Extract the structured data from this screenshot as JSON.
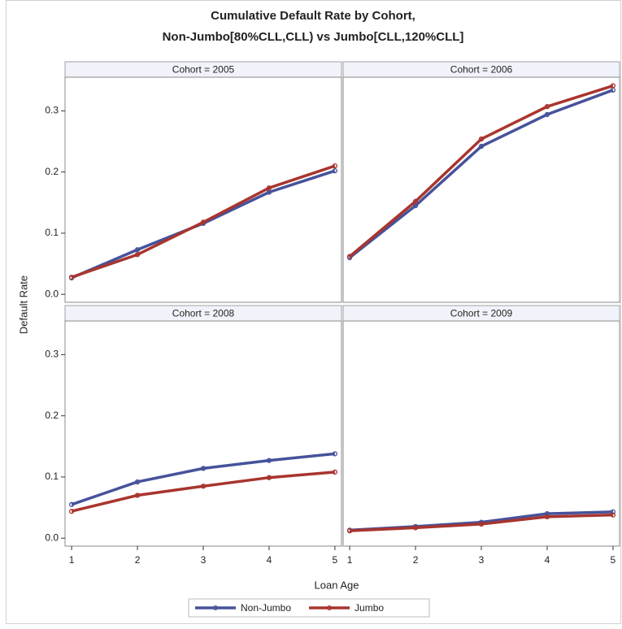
{
  "chart_data": {
    "type": "line",
    "title": "Cumulative Default Rate by Cohort,",
    "subtitle": "Non-Jumbo[80%CLL,CLL) vs Jumbo[CLL,120%CLL]",
    "xlabel": "Loan Age",
    "ylabel": "Default Rate",
    "x": [
      1,
      2,
      3,
      4,
      5
    ],
    "xlim": [
      0.9,
      5.1
    ],
    "xticks": [
      1,
      2,
      3,
      4,
      5
    ],
    "ylim": [
      -0.013,
      0.355
    ],
    "yticks": [
      {
        "value": 0,
        "label": "0.0"
      },
      0.1,
      0.2,
      0.3
    ],
    "legend_position": "bottom",
    "series": [
      {
        "name": "Non-Jumbo",
        "color": "#46529a"
      },
      {
        "name": "Jumbo",
        "color": "#a8352e"
      }
    ],
    "panels": [
      {
        "label": "Cohort = 2005",
        "values": [
          [
            0.027,
            0.073,
            0.116,
            0.167,
            0.202
          ],
          [
            0.028,
            0.065,
            0.118,
            0.174,
            0.21
          ]
        ]
      },
      {
        "label": "Cohort = 2006",
        "values": [
          [
            0.06,
            0.145,
            0.242,
            0.294,
            0.334
          ],
          [
            0.062,
            0.152,
            0.254,
            0.307,
            0.341
          ]
        ]
      },
      {
        "label": "Cohort = 2008",
        "values": [
          [
            0.055,
            0.092,
            0.114,
            0.127,
            0.138
          ],
          [
            0.044,
            0.07,
            0.085,
            0.099,
            0.108
          ]
        ]
      },
      {
        "label": "Cohort = 2009",
        "values": [
          [
            0.013,
            0.019,
            0.026,
            0.04,
            0.043
          ],
          [
            0.012,
            0.017,
            0.023,
            0.035,
            0.038
          ]
        ]
      }
    ]
  }
}
